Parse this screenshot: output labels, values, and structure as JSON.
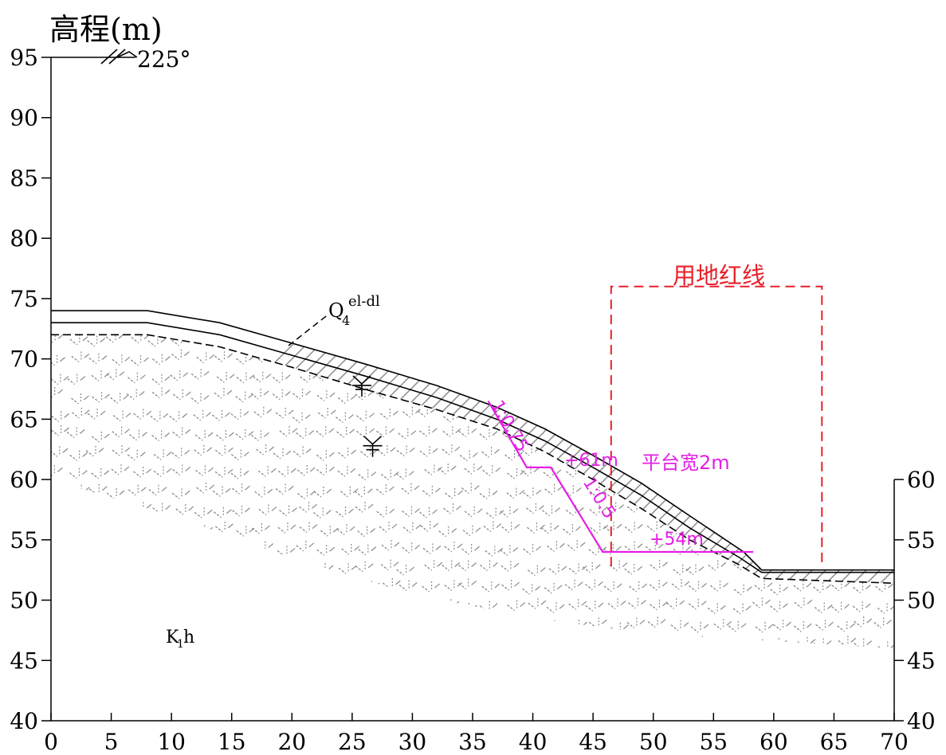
{
  "title": "高程(m)",
  "orientation_label": "225°",
  "x_axis": {
    "range": [
      0,
      70
    ],
    "ticks": [
      0,
      5,
      10,
      15,
      20,
      25,
      30,
      35,
      40,
      45,
      50,
      55,
      60,
      65,
      70
    ]
  },
  "left_axis": {
    "range": [
      40,
      95
    ],
    "ticks": [
      40,
      45,
      50,
      55,
      60,
      65,
      70,
      75,
      80,
      85,
      90,
      95
    ]
  },
  "right_axis": {
    "range": [
      40,
      60
    ],
    "ticks": [
      40,
      45,
      50,
      55,
      60
    ]
  },
  "layers": {
    "surface_layer_label": "Q",
    "surface_layer_sub": "4",
    "surface_layer_sup": "el-dl",
    "bedrock_label": "K",
    "bedrock_sub": "1",
    "bedrock_suffix": "h"
  },
  "redline": {
    "label": "用地红线",
    "x_range": [
      46.5,
      64
    ],
    "top_elevation": 76,
    "color": "#e8202a"
  },
  "excavation": {
    "color": "#e61ee6",
    "slope_upper": "1:0.75",
    "slope_lower": "1:0.5",
    "bench_label": "+61m",
    "bench_width_label": "平台宽2m",
    "toe_label": "+54m"
  },
  "colors": {
    "ground_line": "#000000",
    "hatch": "#8a8a8a"
  },
  "profiles": {
    "ground_surface": [
      [
        0,
        74
      ],
      [
        8,
        74
      ],
      [
        14,
        73
      ],
      [
        20,
        71.3
      ],
      [
        26,
        69.6
      ],
      [
        32,
        67.8
      ],
      [
        37,
        66
      ],
      [
        41,
        64.2
      ],
      [
        45,
        62
      ],
      [
        49,
        59.7
      ],
      [
        53,
        57
      ],
      [
        57.5,
        54
      ],
      [
        59,
        52.5
      ],
      [
        70,
        52.5
      ]
    ],
    "layer_base": [
      [
        0,
        73
      ],
      [
        8,
        73
      ],
      [
        14,
        72
      ],
      [
        20,
        70.3
      ],
      [
        26,
        68.6
      ],
      [
        32,
        66.8
      ],
      [
        37,
        65
      ],
      [
        41,
        63.2
      ],
      [
        45,
        61
      ],
      [
        49,
        58.7
      ],
      [
        53,
        56
      ],
      [
        57.2,
        53.5
      ],
      [
        59,
        52.3
      ],
      [
        70,
        52.3
      ]
    ],
    "weathered_top": [
      [
        0,
        72
      ],
      [
        8,
        72
      ],
      [
        14,
        71
      ],
      [
        20,
        69.3
      ],
      [
        26,
        67.5
      ],
      [
        32,
        65.8
      ],
      [
        37,
        64.2
      ],
      [
        41,
        62.3
      ],
      [
        45,
        60
      ],
      [
        49,
        57.6
      ],
      [
        53,
        55
      ],
      [
        57,
        53
      ],
      [
        59,
        51.8
      ],
      [
        70,
        51.4
      ]
    ],
    "excavation_line": [
      [
        36.3,
        66.5
      ],
      [
        39.5,
        61
      ],
      [
        41.5,
        61
      ],
      [
        45.8,
        54
      ],
      [
        58.3,
        54
      ]
    ],
    "water_markers": [
      [
        25.8,
        67.8
      ],
      [
        26.7,
        62.8
      ]
    ],
    "weathered_bottom": [
      [
        0,
        60
      ],
      [
        10,
        57
      ],
      [
        20,
        53.5
      ],
      [
        30,
        50.5
      ],
      [
        40,
        48.5
      ],
      [
        50,
        47.2
      ],
      [
        60,
        46.6
      ],
      [
        70,
        46
      ]
    ]
  }
}
